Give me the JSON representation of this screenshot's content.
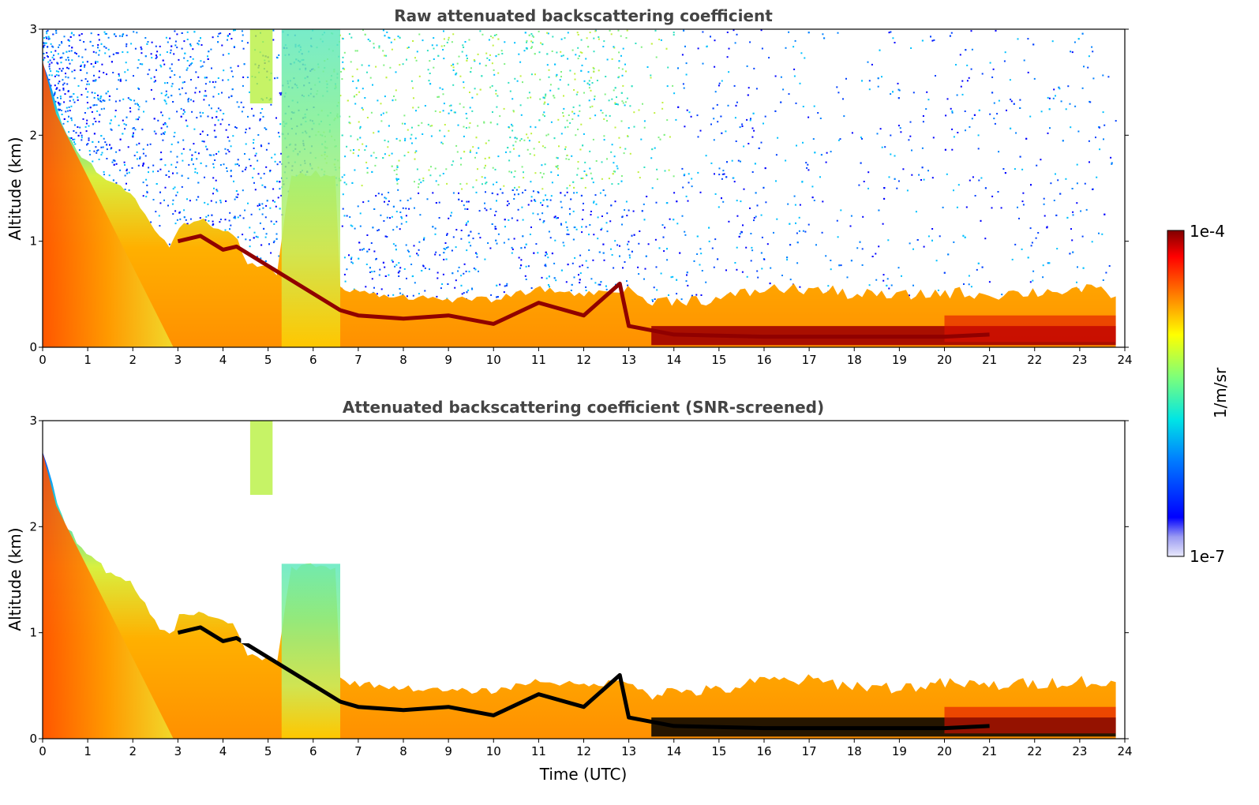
{
  "chart_data": [
    {
      "type": "heatmap",
      "title": "Raw attenuated backscattering coefficient",
      "xlabel": "",
      "ylabel": "Altitude (km)",
      "xlim": [
        0,
        24
      ],
      "ylim": [
        0,
        3
      ],
      "x_ticks": [
        "0",
        "1",
        "2",
        "3",
        "4",
        "5",
        "6",
        "7",
        "8",
        "9",
        "10",
        "11",
        "12",
        "13",
        "14",
        "15",
        "16",
        "17",
        "18",
        "19",
        "20",
        "21",
        "22",
        "23",
        "24"
      ],
      "y_ticks": [
        "0",
        "1",
        "2",
        "3"
      ],
      "grid": false,
      "screened": false,
      "noise_above_layer": true
    },
    {
      "type": "heatmap",
      "title": "Attenuated backscattering coefficient (SNR-screened)",
      "xlabel": "Time (UTC)",
      "ylabel": "Altitude (km)",
      "xlim": [
        0,
        24
      ],
      "ylim": [
        0,
        3
      ],
      "x_ticks": [
        "0",
        "1",
        "2",
        "3",
        "4",
        "5",
        "6",
        "7",
        "8",
        "9",
        "10",
        "11",
        "12",
        "13",
        "14",
        "15",
        "16",
        "17",
        "18",
        "19",
        "20",
        "21",
        "22",
        "23",
        "24"
      ],
      "y_ticks": [
        "0",
        "1",
        "2",
        "3"
      ],
      "grid": false,
      "screened": true,
      "noise_above_layer": false
    }
  ],
  "colorbar": {
    "label": "1/m/sr",
    "max_label": "1e-4",
    "min_label": "1e-7",
    "scale": "log",
    "range": [
      1e-07,
      0.0001
    ],
    "colormap": "jet"
  },
  "profile": {
    "layer_top_km": [
      [
        0,
        2.7
      ],
      [
        0.5,
        2.0
      ],
      [
        1.0,
        1.75
      ],
      [
        1.5,
        1.55
      ],
      [
        2.0,
        1.45
      ],
      [
        2.5,
        1.1
      ],
      [
        2.85,
        0.95
      ],
      [
        3.0,
        1.15
      ],
      [
        3.5,
        1.2
      ],
      [
        4.0,
        1.1
      ],
      [
        4.3,
        1.05
      ],
      [
        4.5,
        0.8
      ],
      [
        5.0,
        0.75
      ],
      [
        5.2,
        0.7
      ],
      [
        5.5,
        1.6
      ],
      [
        6.0,
        1.65
      ],
      [
        6.5,
        1.6
      ],
      [
        6.6,
        0.55
      ],
      [
        7,
        0.52
      ],
      [
        8,
        0.48
      ],
      [
        9,
        0.45
      ],
      [
        10,
        0.45
      ],
      [
        11,
        0.55
      ],
      [
        12,
        0.5
      ],
      [
        13,
        0.55
      ],
      [
        13.5,
        0.42
      ],
      [
        14,
        0.45
      ],
      [
        15,
        0.45
      ],
      [
        16,
        0.55
      ],
      [
        17,
        0.55
      ],
      [
        18,
        0.5
      ],
      [
        19,
        0.48
      ],
      [
        20,
        0.52
      ],
      [
        21,
        0.5
      ],
      [
        22,
        0.52
      ],
      [
        23,
        0.55
      ],
      [
        23.8,
        0.5
      ]
    ],
    "cloud_km": [
      [
        3.0,
        1.0
      ],
      [
        3.5,
        1.05
      ],
      [
        4.0,
        0.92
      ],
      [
        4.3,
        0.95
      ],
      [
        6.6,
        0.35
      ],
      [
        7,
        0.3
      ],
      [
        8,
        0.27
      ],
      [
        9,
        0.3
      ],
      [
        10,
        0.22
      ],
      [
        11,
        0.42
      ],
      [
        12,
        0.3
      ],
      [
        12.8,
        0.6
      ],
      [
        13,
        0.2
      ],
      [
        14,
        0.12
      ],
      [
        16,
        0.1
      ],
      [
        18,
        0.1
      ],
      [
        20,
        0.1
      ],
      [
        21,
        0.12
      ]
    ],
    "clear_gaps_h": [
      [
        2.0,
        2.9
      ],
      [
        4.4,
        5.3
      ]
    ],
    "plume_x": [
      0,
      0.8
    ],
    "column_x": [
      [
        5.3,
        6.6
      ]
    ],
    "data_end_h": 23.8
  }
}
